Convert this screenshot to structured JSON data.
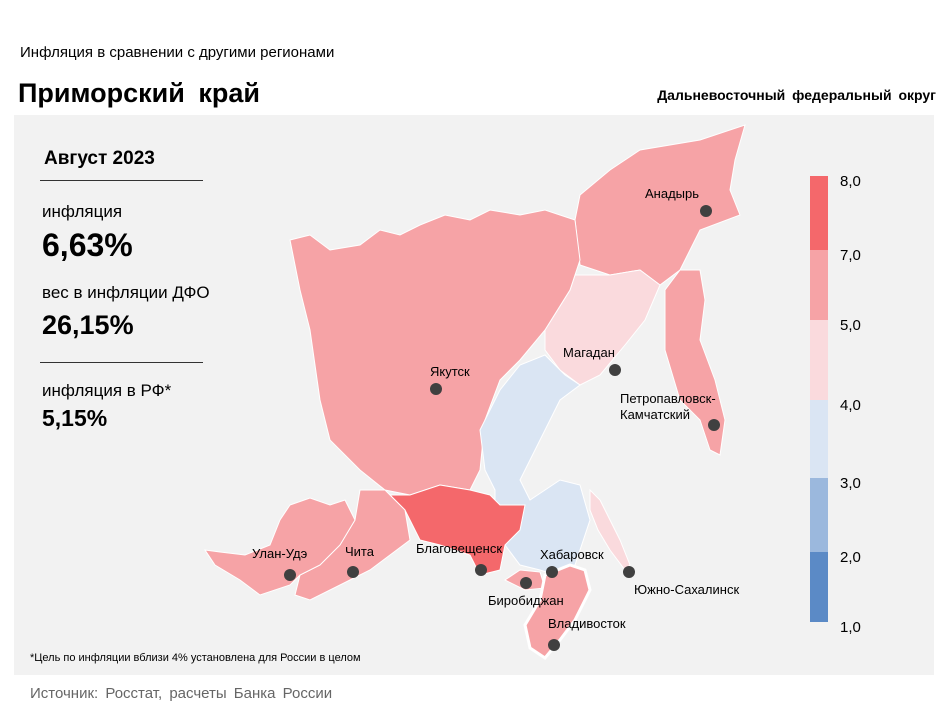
{
  "header": {
    "subtitle": "Инфляция в сравнении с другими регионами",
    "title": "Приморский край",
    "district": "Дальневосточный федеральный округ"
  },
  "stats": {
    "period": "Август 2023",
    "inflation_label": "инфляция",
    "inflation_value": "6,63%",
    "weight_label": "вес в инфляции ДФО",
    "weight_value": "26,15%",
    "rf_label": "инфляция в РФ*",
    "rf_value": "5,15%"
  },
  "note": "*Цель по инфляции вблизи 4% установлена для России в целом",
  "source": "Источник: Росстат, расчеты Банка России",
  "legend": {
    "ticks": [
      "8,0",
      "7,0",
      "5,0",
      "4,0",
      "3,0",
      "2,0",
      "1,0"
    ],
    "bins": [
      {
        "range": [
          7,
          8
        ],
        "color": "#f4686b"
      },
      {
        "range": [
          5,
          7
        ],
        "color": "#f6a3a6"
      },
      {
        "range": [
          4,
          5
        ],
        "color": "#fadadd"
      },
      {
        "range": [
          3,
          4
        ],
        "color": "#dae5f3"
      },
      {
        "range": [
          2,
          3
        ],
        "color": "#9bb8dd"
      },
      {
        "range": [
          1,
          2
        ],
        "color": "#5b8ac6"
      }
    ]
  },
  "regions": [
    {
      "city": "Анадырь",
      "color": "#f6a3a6"
    },
    {
      "city": "Магадан",
      "color": "#fadadd"
    },
    {
      "city": "Петропавловск-",
      "city2": "Камчатский",
      "color": "#f6a3a6"
    },
    {
      "city": "Якутск",
      "color": "#f6a3a6"
    },
    {
      "city": "Хабаровск",
      "color": "#dae5f3"
    },
    {
      "city": "Благовещенск",
      "color": "#f4686b"
    },
    {
      "city": "Биробиджан",
      "color": "#f6a3a6"
    },
    {
      "city": "Владивосток",
      "color": "#f6a3a6",
      "highlighted": true
    },
    {
      "city": "Южно-Сахалинск",
      "color": "#fadadd"
    },
    {
      "city": "Чита",
      "color": "#f6a3a6"
    },
    {
      "city": "Улан-Удэ",
      "color": "#f6a3a6"
    }
  ]
}
